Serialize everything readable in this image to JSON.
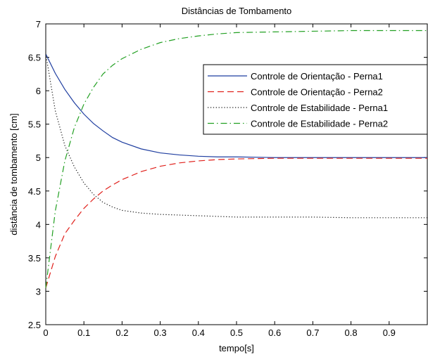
{
  "chart_data": {
    "type": "line",
    "title": "Distâncias de Tombamento",
    "xlabel": "tempo[s]",
    "ylabel": "distância de tombamento [cm]",
    "xlim": [
      0,
      1
    ],
    "ylim": [
      2.5,
      7
    ],
    "xticks": [
      0,
      0.1,
      0.2,
      0.3,
      0.4,
      0.5,
      0.6,
      0.7,
      0.8,
      0.9
    ],
    "xtick_labels": [
      "0",
      "0.1",
      "0.2",
      "0.3",
      "0.4",
      "0.5",
      "0.6",
      "0.7",
      "0.8",
      "0.9"
    ],
    "yticks": [
      2.5,
      3,
      3.5,
      4,
      4.5,
      5,
      5.5,
      6,
      6.5,
      7
    ],
    "ytick_labels": [
      "2.5",
      "3",
      "3.5",
      "4",
      "4.5",
      "5",
      "5.5",
      "6",
      "6.5",
      "7"
    ],
    "grid": false,
    "legend": "top-right",
    "x": [
      0,
      0.025,
      0.05,
      0.075,
      0.1,
      0.125,
      0.15,
      0.175,
      0.2,
      0.25,
      0.3,
      0.35,
      0.4,
      0.45,
      0.5,
      0.6,
      0.7,
      0.8,
      0.9,
      1.0
    ],
    "series": [
      {
        "name": "Controle de Orientação - Perna1",
        "color": "#1f3ea0",
        "dash": "solid",
        "values": [
          6.55,
          6.26,
          6.02,
          5.82,
          5.65,
          5.51,
          5.4,
          5.3,
          5.23,
          5.13,
          5.07,
          5.04,
          5.02,
          5.01,
          5.01,
          5.0,
          5.0,
          5.0,
          5.0,
          5.0
        ]
      },
      {
        "name": "Controle de Orientação - Perna2",
        "color": "#e0201b",
        "dash": "dashed",
        "values": [
          3.05,
          3.52,
          3.86,
          4.06,
          4.24,
          4.38,
          4.5,
          4.59,
          4.67,
          4.79,
          4.87,
          4.92,
          4.95,
          4.97,
          4.98,
          4.99,
          4.99,
          4.99,
          4.99,
          4.99
        ]
      },
      {
        "name": "Controle de Estabilidade - Perna1",
        "color": "#222222",
        "dash": "dotted",
        "values": [
          6.55,
          5.7,
          5.18,
          4.86,
          4.62,
          4.45,
          4.33,
          4.26,
          4.21,
          4.17,
          4.15,
          4.14,
          4.13,
          4.12,
          4.11,
          4.11,
          4.11,
          4.1,
          4.1,
          4.1
        ]
      },
      {
        "name": "Controle de Estabilidade - Perna2",
        "color": "#22a022",
        "dash": "dashdot",
        "values": [
          3.05,
          4.2,
          4.95,
          5.45,
          5.8,
          6.05,
          6.25,
          6.38,
          6.48,
          6.62,
          6.72,
          6.78,
          6.82,
          6.85,
          6.87,
          6.88,
          6.89,
          6.9,
          6.9,
          6.9
        ]
      }
    ]
  }
}
